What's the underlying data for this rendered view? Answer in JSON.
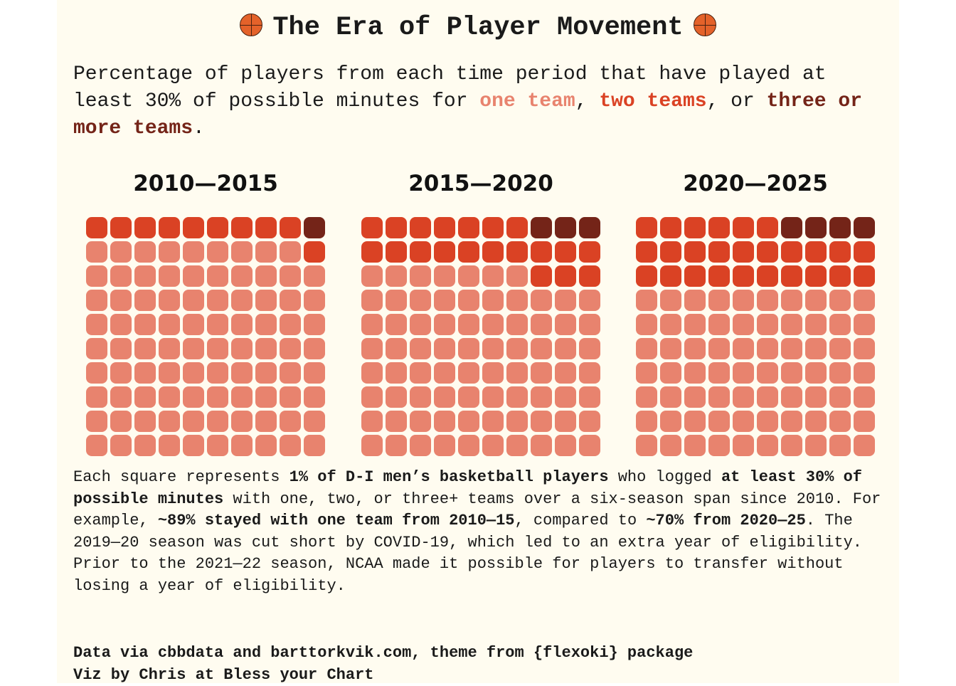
{
  "title": "The Era of Player Movement",
  "subtitle": [
    {
      "t": "Percentage of players from each time period that have played at least 30% of possible minutes for "
    },
    {
      "t": "one team",
      "c": "one"
    },
    {
      "t": ", "
    },
    {
      "t": "two teams",
      "c": "two"
    },
    {
      "t": ", or "
    },
    {
      "t": "three or more teams",
      "c": "three"
    },
    {
      "t": "."
    }
  ],
  "colors": {
    "one": "#E8836E",
    "two": "#DA4224",
    "three": "#742418",
    "background": "#FFFCF0"
  },
  "chart_data": {
    "type": "waffle",
    "categories": [
      "one team",
      "two teams",
      "three or more teams"
    ],
    "panels": [
      {
        "title": "2010—2015",
        "values": [
          89,
          10,
          1
        ]
      },
      {
        "title": "2015—2020",
        "values": [
          77,
          20,
          3
        ]
      },
      {
        "title": "2020—2025",
        "values": [
          70,
          26,
          4
        ]
      }
    ],
    "unit": "1 square = 1%"
  },
  "caption": [
    {
      "t": "Each square represents "
    },
    {
      "t": "1% of D-I men’s basketball players",
      "b": true
    },
    {
      "t": " who logged "
    },
    {
      "t": "at least 30% of possible minutes",
      "b": true
    },
    {
      "t": " with one, two, or three+ teams over a six-season span since 2010. For example, "
    },
    {
      "t": "~89% stayed with one team from 2010—15",
      "b": true
    },
    {
      "t": ", compared to "
    },
    {
      "t": "~70% from 2020—25",
      "b": true
    },
    {
      "t": ". The 2019—20 season was cut short by COVID-19, which led to an extra year of eligibility. Prior to the 2021—22 season, NCAA made it possible for players to transfer without losing a year of eligibility."
    }
  ],
  "credits": [
    "Data via cbbdata and barttorkvik.com, theme from {flexoki} package",
    "Viz by Chris at Bless your Chart"
  ]
}
